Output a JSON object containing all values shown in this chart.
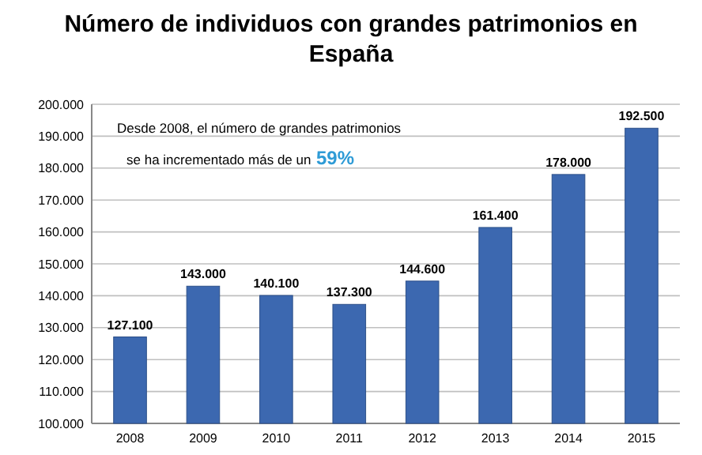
{
  "chart_data": {
    "type": "bar",
    "title": "Número de individuos con grandes patrimonios en España",
    "categories": [
      "2008",
      "2009",
      "2010",
      "2011",
      "2012",
      "2013",
      "2014",
      "2015"
    ],
    "values": [
      127100,
      143000,
      140100,
      137300,
      144600,
      161400,
      178000,
      192500
    ],
    "value_labels": [
      "127.100",
      "143.000",
      "140.100",
      "137.300",
      "144.600",
      "161.400",
      "178.000",
      "192.500"
    ],
    "color": "#3c68b0",
    "ylim": [
      100000,
      200000
    ],
    "yticks": [
      {
        "value": 100000,
        "label": "100.000"
      },
      {
        "value": 110000,
        "label": "110.000"
      },
      {
        "value": 120000,
        "label": "120.000"
      },
      {
        "value": 130000,
        "label": "130.000"
      },
      {
        "value": 140000,
        "label": "140.000"
      },
      {
        "value": 150000,
        "label": "150.000"
      },
      {
        "value": 160000,
        "label": "160.000"
      },
      {
        "value": 170000,
        "label": "170.000"
      },
      {
        "value": 180000,
        "label": "180.000"
      },
      {
        "value": 190000,
        "label": "190.000"
      },
      {
        "value": 200000,
        "label": "200.000"
      }
    ],
    "grid": "y",
    "annotations": [
      "Desde 2008, el número de grandes patrimonios",
      "se ha incrementado más de un",
      "59%"
    ]
  }
}
